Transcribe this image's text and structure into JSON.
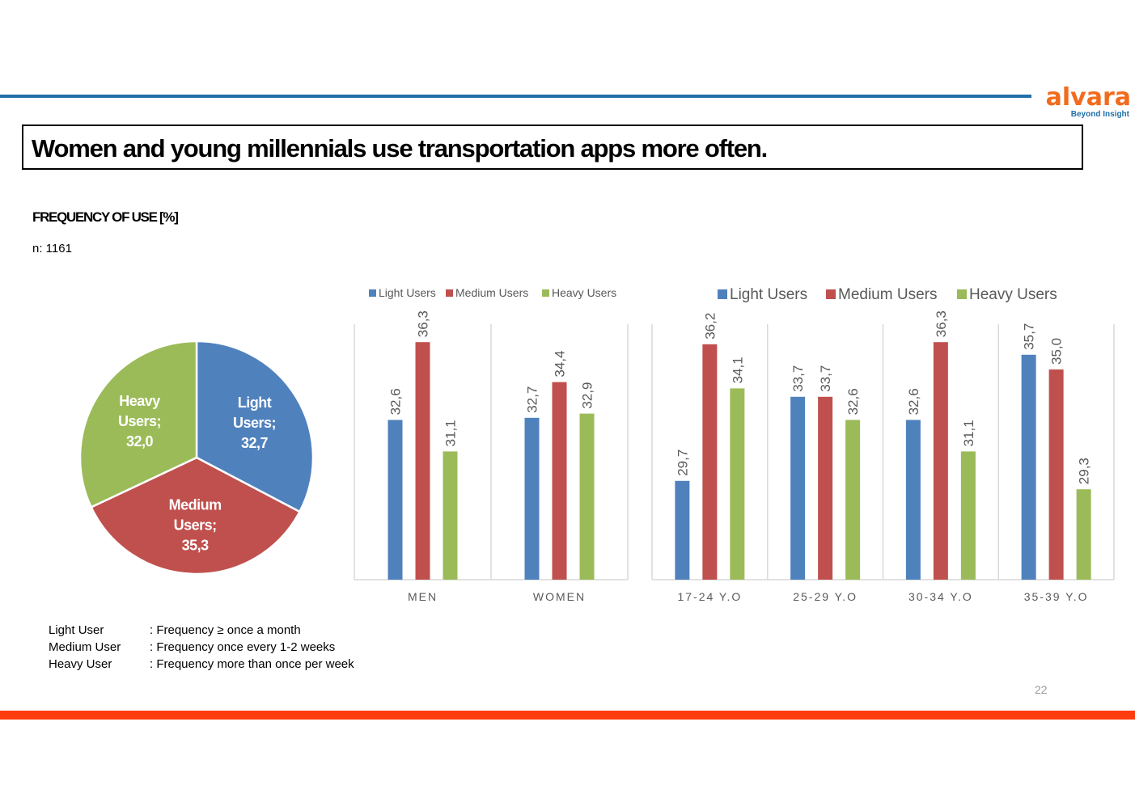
{
  "header": {
    "logo_text": "alvara",
    "logo_tagline": "Beyond Insight",
    "title": "Women and young millennials use transportation apps more often."
  },
  "subtitle": "FREQUENCY OF USE [%]",
  "sample": "n: 1161",
  "definitions": [
    {
      "term": "Light User",
      "desc": ": Frequency ≥ once a month"
    },
    {
      "term": "Medium User",
      "desc": ": Frequency  once every 1-2 weeks"
    },
    {
      "term": "Heavy User",
      "desc": ": Frequency more than once per week"
    }
  ],
  "page_number": "22",
  "colors": {
    "light": "#4f81bd",
    "medium": "#c0504d",
    "heavy": "#9bbb59",
    "accent_line": "#1f6fa8",
    "bottom_bar": "#ff3c10"
  },
  "chart_data": [
    {
      "type": "pie",
      "title": "",
      "slices": [
        {
          "label": "Light Users",
          "value": 32.7,
          "display": "32,7",
          "color": "#4f81bd",
          "label_lines": [
            "Light",
            "Users;",
            "32,7"
          ]
        },
        {
          "label": "Medium Users",
          "value": 35.3,
          "display": "35,3",
          "color": "#c0504d",
          "label_lines": [
            "Medium",
            "Users;",
            "35,3"
          ]
        },
        {
          "label": "Heavy Users",
          "value": 32.0,
          "display": "32,0",
          "color": "#9bbb59",
          "label_lines": [
            "Heavy",
            "Users;",
            "32,0"
          ]
        }
      ]
    },
    {
      "type": "bar",
      "legend": [
        "Light Users",
        "Medium Users",
        "Heavy Users"
      ],
      "categories": [
        "MEN",
        "WOMEN"
      ],
      "series": [
        {
          "name": "Light Users",
          "values": [
            32.6,
            32.7
          ],
          "labels": [
            "32,6",
            "32,7"
          ],
          "color": "#4f81bd"
        },
        {
          "name": "Medium Users",
          "values": [
            36.3,
            34.4
          ],
          "labels": [
            "36,3",
            "34,4"
          ],
          "color": "#c0504d"
        },
        {
          "name": "Heavy Users",
          "values": [
            31.1,
            32.9
          ],
          "labels": [
            "31,1",
            "32,9"
          ],
          "color": "#9bbb59"
        }
      ],
      "ylim": [
        25,
        37
      ]
    },
    {
      "type": "bar",
      "legend": [
        "Light Users",
        "Medium Users",
        "Heavy Users"
      ],
      "categories": [
        "17-24 Y.O",
        "25-29 Y.O",
        "30-34 Y.O",
        "35-39 Y.O"
      ],
      "series": [
        {
          "name": "Light Users",
          "values": [
            29.7,
            33.7,
            32.6,
            35.7
          ],
          "labels": [
            "29,7",
            "33,7",
            "32,6",
            "35,7"
          ],
          "color": "#4f81bd"
        },
        {
          "name": "Medium Users",
          "values": [
            36.2,
            33.7,
            36.3,
            35.0
          ],
          "labels": [
            "36,2",
            "33,7",
            "36,3",
            "35,0"
          ],
          "color": "#c0504d"
        },
        {
          "name": "Heavy Users",
          "values": [
            34.1,
            32.6,
            31.1,
            29.3
          ],
          "labels": [
            "34,1",
            "32,6",
            "31,1",
            "29,3"
          ],
          "color": "#9bbb59"
        }
      ],
      "ylim": [
        25,
        37
      ]
    }
  ]
}
